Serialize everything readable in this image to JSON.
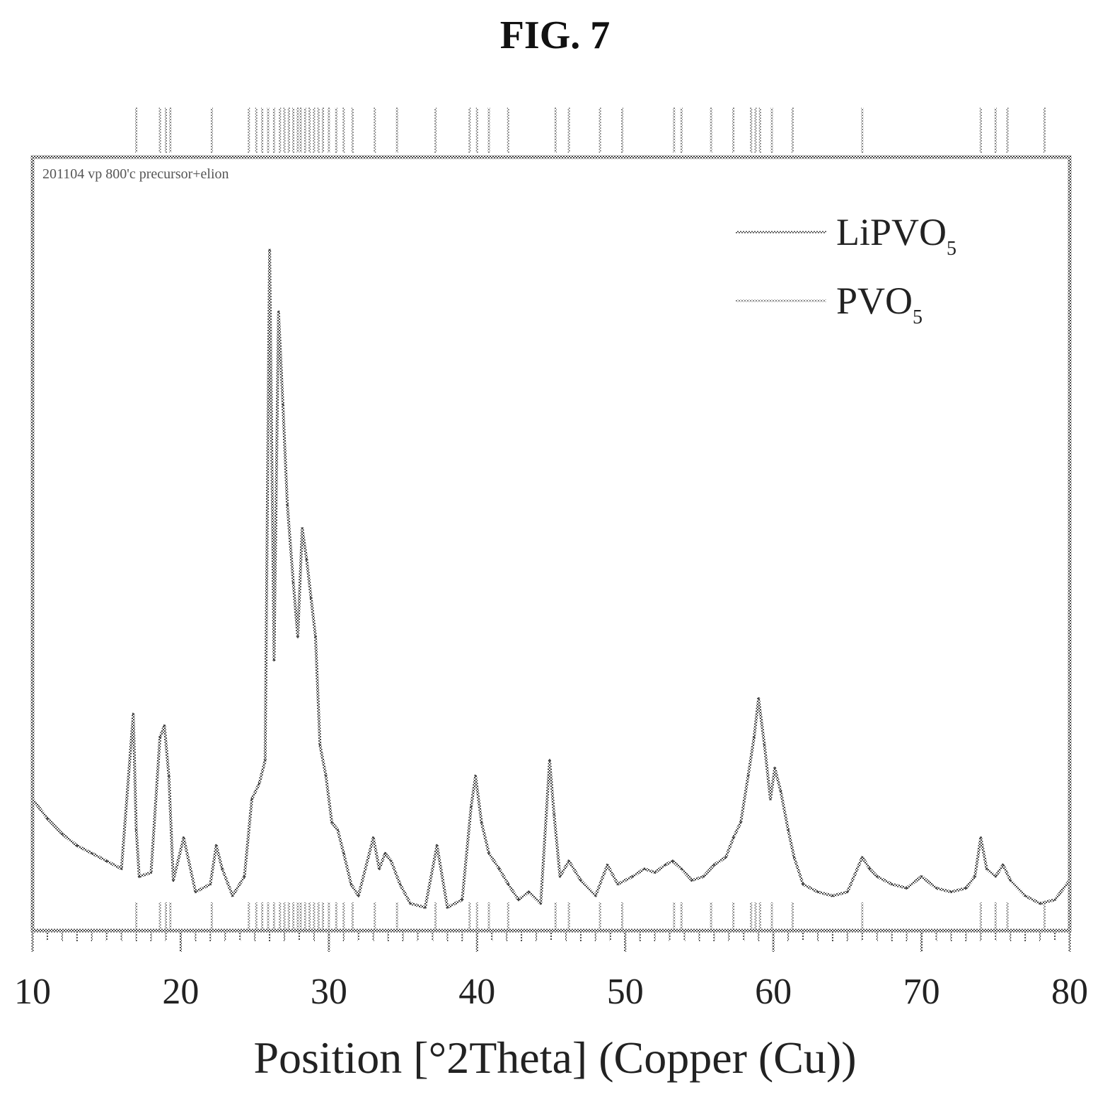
{
  "figure_label": "FIG. 7",
  "chart_data": {
    "type": "line",
    "title": "",
    "annotation": "201104 vp 800'c precursor+elion",
    "xlabel": "Position [°2Theta] (Copper (Cu))",
    "ylabel": "",
    "xlim": [
      10,
      80
    ],
    "ylim": [
      0,
      100
    ],
    "x_ticks": [
      10,
      20,
      30,
      40,
      50,
      60,
      70,
      80
    ],
    "x_tick_labels": [
      "10",
      "20",
      "30",
      "40",
      "50",
      "60",
      "70",
      "80"
    ],
    "grid": false,
    "legend_position": "top-right",
    "legend": [
      {
        "label": "LiPVO",
        "subscript": "5"
      },
      {
        "label": "PVO",
        "subscript": "5"
      }
    ],
    "series": [
      {
        "name": "LiPVO5",
        "x": [
          10,
          11,
          12,
          13,
          14,
          15,
          16,
          16.8,
          17.0,
          17.2,
          18,
          18.6,
          18.9,
          19.2,
          19.5,
          20.2,
          21,
          22,
          22.4,
          22.8,
          23.5,
          24.3,
          24.8,
          25.3,
          25.7,
          26.0,
          26.3,
          26.6,
          26.9,
          27.2,
          27.6,
          27.9,
          28.2,
          28.5,
          28.8,
          29.1,
          29.4,
          29.8,
          30.2,
          30.6,
          31.0,
          31.5,
          32,
          33.0,
          33.4,
          33.8,
          34.2,
          34.8,
          35.5,
          36.5,
          37.3,
          38,
          39,
          39.6,
          39.9,
          40.3,
          40.8,
          41.5,
          42.1,
          42.8,
          43.5,
          44.3,
          44.9,
          45.2,
          45.6,
          46.2,
          47,
          48,
          48.8,
          49.5,
          50.5,
          51.3,
          52,
          52.7,
          53.2,
          53.8,
          54.5,
          55.3,
          56,
          56.8,
          57.3,
          57.8,
          58.3,
          58.7,
          59.0,
          59.4,
          59.8,
          60.1,
          60.5,
          61.0,
          61.4,
          62,
          63,
          64,
          65,
          66,
          66.5,
          67,
          68,
          69,
          70,
          71,
          72,
          73,
          73.6,
          74.0,
          74.4,
          75,
          75.5,
          76,
          77,
          78,
          79,
          80
        ],
        "y": [
          17,
          14.5,
          12.5,
          11,
          10,
          9,
          8,
          28,
          13,
          7,
          7.5,
          25,
          26.5,
          20,
          6.5,
          12,
          5,
          6,
          11,
          8,
          4.5,
          7,
          17,
          19,
          22,
          88,
          35,
          80,
          68,
          55,
          45,
          38,
          52,
          48,
          43,
          38,
          24,
          20,
          14,
          13,
          10,
          6,
          4.5,
          12,
          8,
          10,
          9,
          6,
          3.5,
          3,
          11,
          3,
          4,
          16,
          20,
          14,
          10,
          8,
          6,
          4,
          5,
          3.5,
          22,
          15,
          7,
          9,
          6.5,
          4.5,
          8.5,
          6,
          7,
          8,
          7.5,
          8.5,
          9,
          8,
          6.5,
          7,
          8.5,
          9.5,
          12,
          14,
          20,
          25,
          30,
          24,
          17,
          21,
          18,
          13,
          9.5,
          6,
          5,
          4.5,
          5,
          9.5,
          8,
          7,
          6,
          5.5,
          7,
          5.5,
          5,
          5.5,
          7,
          12,
          8,
          7,
          8.5,
          6.5,
          4.5,
          3.5,
          4,
          6.5
        ]
      }
    ],
    "reference_lines": {
      "name": "PVO5",
      "x": [
        17.0,
        18.6,
        19.0,
        19.3,
        22.1,
        24.6,
        25.1,
        25.5,
        25.9,
        26.3,
        26.7,
        27.0,
        27.3,
        27.6,
        27.9,
        28.1,
        28.4,
        28.7,
        29.0,
        29.3,
        29.6,
        30.0,
        30.5,
        31.0,
        31.6,
        33.1,
        34.6,
        37.2,
        39.5,
        40.0,
        40.8,
        42.1,
        45.3,
        46.2,
        48.3,
        49.8,
        53.3,
        53.8,
        55.8,
        57.3,
        58.5,
        58.8,
        59.1,
        59.9,
        61.3,
        66.0,
        74.0,
        75.0,
        75.8,
        78.3
      ]
    }
  }
}
